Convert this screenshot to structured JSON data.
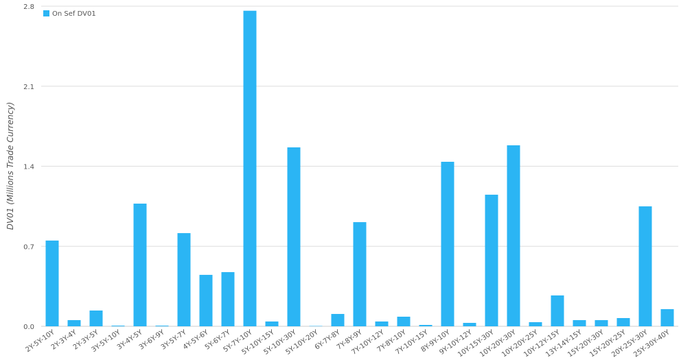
{
  "chart_data": {
    "type": "bar",
    "y_label": "DV01 (Millions Trade Currency)",
    "categories": [
      "2Y-5Y-10Y",
      "2Y-3Y-4Y",
      "2Y-3Y-5Y",
      "3Y-5Y-10Y",
      "3Y-4Y-5Y",
      "3Y-6Y-9Y",
      "3Y-5Y-7Y",
      "4Y-5Y-6Y",
      "5Y-6Y-7Y",
      "5Y-7Y-10Y",
      "5Y-10Y-15Y",
      "5Y-10Y-30Y",
      "5Y-10Y-20Y",
      "6Y-7Y-8Y",
      "7Y-8Y-9Y",
      "7Y-10Y-12Y",
      "7Y-8Y-10Y",
      "7Y-10Y-15Y",
      "8Y-9Y-10Y",
      "9Y-10Y-12Y",
      "10Y-15Y-30Y",
      "10Y-20Y-30Y",
      "10Y-20Y-25Y",
      "10Y-12Y-15Y",
      "13Y-14Y-15Y",
      "15Y-20Y-30Y",
      "15Y-20Y-25Y",
      "20Y-25Y-30Y",
      "25Y-30Y-40Y"
    ],
    "series": [
      {
        "name": "On Sef DV01",
        "color": "#2bb5f4",
        "values": [
          0.75,
          0.054,
          0.138,
          0.006,
          1.073,
          0.006,
          0.815,
          0.45,
          0.474,
          2.76,
          0.042,
          1.565,
          0.003,
          0.108,
          0.911,
          0.042,
          0.084,
          0.012,
          1.439,
          0.03,
          1.151,
          1.583,
          0.036,
          0.27,
          0.054,
          0.054,
          0.072,
          1.049,
          0.15
        ]
      }
    ],
    "ylim": [
      0,
      2.8
    ],
    "yticks": [
      {
        "value": 0,
        "label": "0.0"
      },
      0.7,
      1.4,
      2.1,
      2.8
    ],
    "grid": true,
    "legend": "top-left"
  }
}
